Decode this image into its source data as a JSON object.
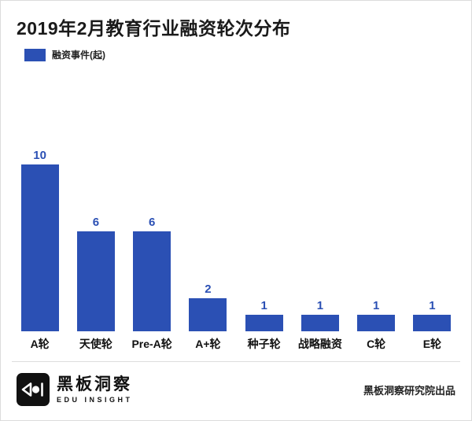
{
  "title": "2019年2月教育行业融资轮次分布",
  "legend": {
    "label": "融资事件(起)",
    "color": "#2B50B4"
  },
  "chart_data": {
    "type": "bar",
    "title": "2019年2月教育行业融资轮次分布",
    "categories": [
      "A轮",
      "天使轮",
      "Pre-A轮",
      "A+轮",
      "种子轮",
      "战略融资",
      "C轮",
      "E轮"
    ],
    "values": [
      10,
      6,
      6,
      2,
      1,
      1,
      1,
      1
    ],
    "series_name": "融资事件(起)",
    "xlabel": "",
    "ylabel": "",
    "ylim": [
      0,
      10
    ],
    "grid": false,
    "legend_position": "top-left",
    "bar_color": "#2B50B4",
    "value_label_color": "#2B50B4",
    "value_labels": true
  },
  "footer": {
    "brand_name": "黑板洞察",
    "brand_subtitle": "EDU INSIGHT",
    "credit": "黑板洞察研究院出品"
  }
}
